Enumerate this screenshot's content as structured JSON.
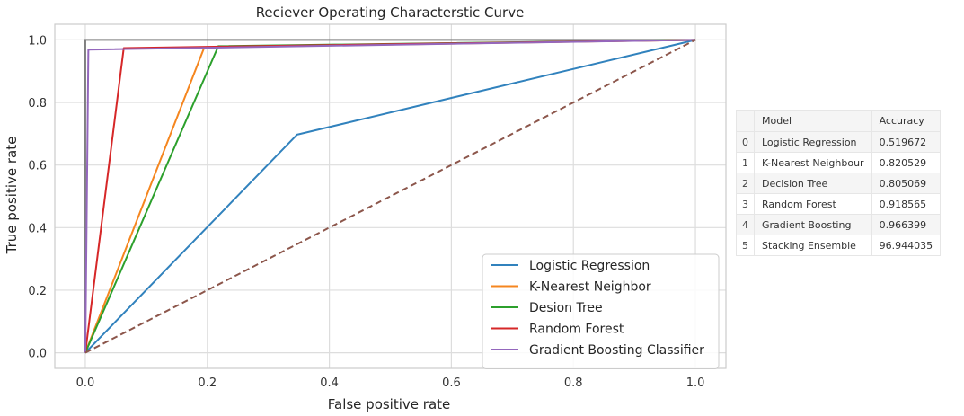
{
  "chart_data": {
    "type": "line",
    "title": "Reciever Operating Characterstic Curve",
    "xlabel": "False positive rate",
    "ylabel": "True positive rate",
    "xlim": [
      -0.05,
      1.05
    ],
    "ylim": [
      -0.05,
      1.05
    ],
    "xticks": [
      "0.0",
      "0.2",
      "0.4",
      "0.6",
      "0.8",
      "1.0"
    ],
    "yticks": [
      "0.0",
      "0.2",
      "0.4",
      "0.6",
      "0.8",
      "1.0"
    ],
    "grid": true,
    "legend_position": "lower-right",
    "series": [
      {
        "name": "Logistic Regression",
        "color": "#3182bd",
        "x": [
          0.0,
          0.347,
          1.0
        ],
        "y": [
          0.0,
          0.697,
          1.0
        ]
      },
      {
        "name": "K-Nearest Neighbor",
        "color": "#f5861f",
        "x": [
          0.0,
          0.195,
          1.0
        ],
        "y": [
          0.0,
          0.976,
          1.0
        ]
      },
      {
        "name": "Desion Tree",
        "color": "#2ca02c",
        "x": [
          0.0,
          0.218,
          1.0
        ],
        "y": [
          0.0,
          0.98,
          1.0
        ]
      },
      {
        "name": "Random Forest",
        "color": "#d62728",
        "x": [
          0.0,
          0.063,
          1.0
        ],
        "y": [
          0.0,
          0.974,
          1.0
        ]
      },
      {
        "name": "Gradient Boosting Classifier",
        "color": "#9467bd",
        "x": [
          0.0,
          0.005,
          1.0
        ],
        "y": [
          0.0,
          0.969,
          1.0
        ]
      }
    ],
    "extra_lines": [
      {
        "style": "solid",
        "color": "#7f7f7f",
        "x": [
          0.0,
          0.0,
          1.0
        ],
        "y": [
          0.0,
          1.0,
          1.0
        ]
      },
      {
        "style": "dashed",
        "color": "#8c564b",
        "x": [
          0.0,
          1.0
        ],
        "y": [
          0.0,
          1.0
        ]
      }
    ]
  },
  "table": {
    "headers": [
      "",
      "Model",
      "Accuracy"
    ],
    "rows": [
      [
        "0",
        "Logistic Regression",
        "0.519672"
      ],
      [
        "1",
        "K-Nearest Neighbour",
        "0.820529"
      ],
      [
        "2",
        "Decision Tree",
        "0.805069"
      ],
      [
        "3",
        "Random Forest",
        "0.918565"
      ],
      [
        "4",
        "Gradient Boosting",
        "0.966399"
      ],
      [
        "5",
        "Stacking Ensemble",
        "96.944035"
      ]
    ]
  }
}
